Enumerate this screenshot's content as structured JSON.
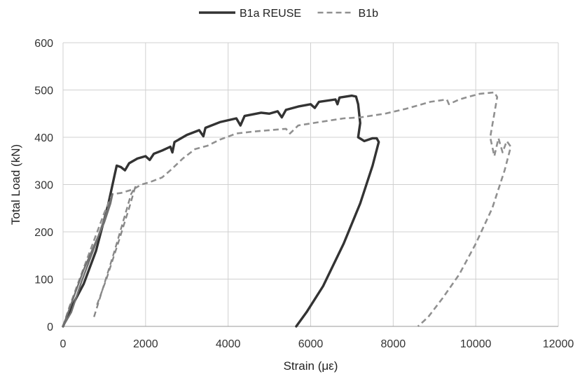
{
  "chart_data": {
    "type": "line",
    "title": "",
    "xlabel": "Strain (με)",
    "ylabel": "Total Load (kN)",
    "xlim": [
      0,
      12000
    ],
    "ylim": [
      0,
      600
    ],
    "xticks": [
      0,
      2000,
      4000,
      6000,
      8000,
      10000,
      12000
    ],
    "yticks": [
      0,
      100,
      200,
      300,
      400,
      500,
      600
    ],
    "xtick_labels": [
      "0",
      "2000",
      "4000",
      "6000",
      "8000",
      "10000",
      "12000"
    ],
    "ytick_labels": [
      "0",
      "100",
      "200",
      "300",
      "400",
      "500",
      "600"
    ],
    "grid": true,
    "legend_position": "top",
    "series": [
      {
        "name": "B1a REUSE",
        "color": "#333333",
        "style": "solid",
        "points": [
          [
            0,
            0
          ],
          [
            200,
            40
          ],
          [
            500,
            90
          ],
          [
            800,
            160
          ],
          [
            1100,
            260
          ],
          [
            1250,
            320
          ],
          [
            1300,
            340
          ],
          [
            1400,
            337
          ],
          [
            1500,
            330
          ],
          [
            1600,
            345
          ],
          [
            1800,
            355
          ],
          [
            2000,
            360
          ],
          [
            2100,
            352
          ],
          [
            2200,
            365
          ],
          [
            2400,
            372
          ],
          [
            2600,
            380
          ],
          [
            2650,
            368
          ],
          [
            2700,
            390
          ],
          [
            3000,
            405
          ],
          [
            3300,
            415
          ],
          [
            3400,
            402
          ],
          [
            3450,
            420
          ],
          [
            3800,
            432
          ],
          [
            4200,
            440
          ],
          [
            4300,
            425
          ],
          [
            4400,
            445
          ],
          [
            4800,
            452
          ],
          [
            5000,
            450
          ],
          [
            5200,
            455
          ],
          [
            5300,
            442
          ],
          [
            5400,
            458
          ],
          [
            5700,
            465
          ],
          [
            6000,
            470
          ],
          [
            6100,
            462
          ],
          [
            6200,
            475
          ],
          [
            6600,
            480
          ],
          [
            6650,
            470
          ],
          [
            6700,
            484
          ],
          [
            7000,
            488
          ],
          [
            7100,
            486
          ],
          [
            7150,
            470
          ],
          [
            7200,
            430
          ],
          [
            7150,
            400
          ],
          [
            7300,
            392
          ],
          [
            7500,
            398
          ],
          [
            7600,
            398
          ],
          [
            7650,
            390
          ],
          [
            7500,
            340
          ],
          [
            7200,
            260
          ],
          [
            6800,
            175
          ],
          [
            6300,
            85
          ],
          [
            5900,
            30
          ],
          [
            5650,
            0
          ]
        ]
      },
      {
        "name": "B1b",
        "color": "#909090",
        "style": "dashed",
        "points": [
          [
            0,
            0
          ],
          [
            150,
            40
          ],
          [
            400,
            100
          ],
          [
            700,
            170
          ],
          [
            1000,
            240
          ],
          [
            1200,
            280
          ],
          [
            1400,
            282
          ],
          [
            1700,
            290
          ],
          [
            1900,
            300
          ],
          [
            2100,
            305
          ],
          [
            2400,
            315
          ],
          [
            2600,
            330
          ],
          [
            2900,
            355
          ],
          [
            3200,
            375
          ],
          [
            3500,
            382
          ],
          [
            3800,
            395
          ],
          [
            4200,
            408
          ],
          [
            4600,
            412
          ],
          [
            5000,
            415
          ],
          [
            5400,
            418
          ],
          [
            5500,
            408
          ],
          [
            5700,
            425
          ],
          [
            6200,
            432
          ],
          [
            6800,
            440
          ],
          [
            7200,
            442
          ],
          [
            7800,
            450
          ],
          [
            8300,
            460
          ],
          [
            8900,
            475
          ],
          [
            9300,
            480
          ],
          [
            9350,
            470
          ],
          [
            9600,
            480
          ],
          [
            9800,
            485
          ],
          [
            10100,
            492
          ],
          [
            10450,
            495
          ],
          [
            10520,
            485
          ],
          [
            10350,
            400
          ],
          [
            10450,
            360
          ],
          [
            10550,
            398
          ],
          [
            10650,
            368
          ],
          [
            10750,
            392
          ],
          [
            10850,
            380
          ],
          [
            10700,
            330
          ],
          [
            10400,
            250
          ],
          [
            10000,
            175
          ],
          [
            9600,
            110
          ],
          [
            9200,
            60
          ],
          [
            8850,
            20
          ],
          [
            8600,
            0
          ]
        ]
      },
      {
        "name": "",
        "color": "#707070",
        "style": "solid",
        "points": [
          [
            0,
            0
          ],
          [
            250,
            60
          ],
          [
            500,
            120
          ],
          [
            800,
            180
          ],
          [
            1000,
            220
          ],
          [
            1150,
            260
          ],
          [
            1200,
            280
          ],
          [
            1050,
            240
          ],
          [
            750,
            165
          ],
          [
            450,
            95
          ],
          [
            200,
            30
          ],
          [
            0,
            0
          ]
        ]
      },
      {
        "name": "",
        "color": "#888888",
        "style": "dashed",
        "points": [
          [
            750,
            20
          ],
          [
            1000,
            90
          ],
          [
            1250,
            160
          ],
          [
            1450,
            220
          ],
          [
            1650,
            280
          ],
          [
            1750,
            295
          ],
          [
            1600,
            250
          ],
          [
            1350,
            180
          ],
          [
            1050,
            100
          ],
          [
            800,
            40
          ]
        ]
      }
    ]
  }
}
